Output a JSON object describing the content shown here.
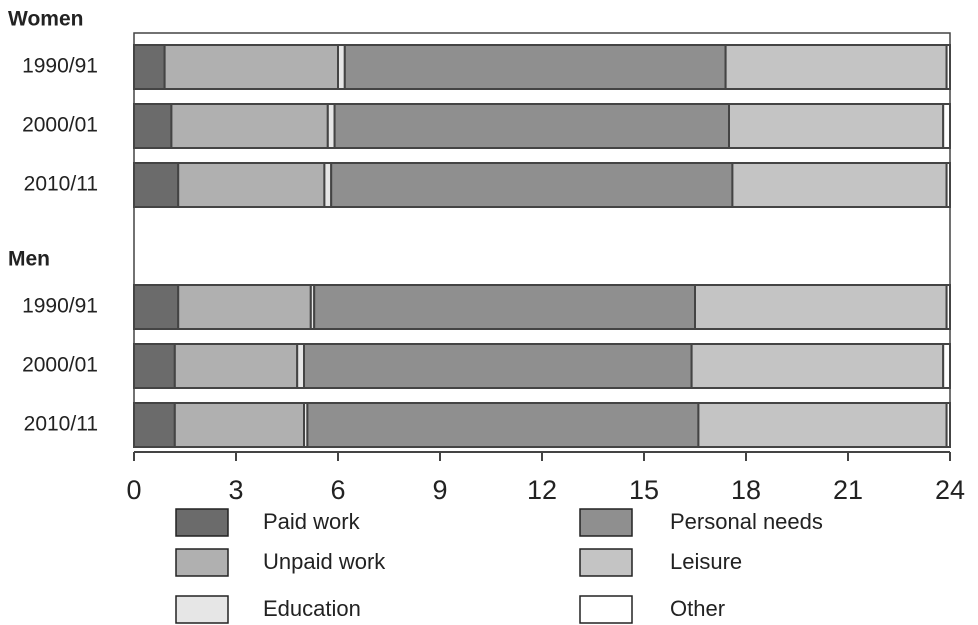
{
  "chart_data": {
    "type": "stacked-bar",
    "orientation": "horizontal",
    "groups": [
      {
        "name": "Women",
        "categories": [
          "1990/91",
          "2000/01",
          "2010/11"
        ]
      },
      {
        "name": "Men",
        "categories": [
          "1990/91",
          "2000/01",
          "2010/11"
        ]
      }
    ],
    "series": [
      {
        "name": "Paid work",
        "color": "#6b6b6b",
        "values": [
          0.9,
          1.1,
          1.3,
          1.3,
          1.2,
          1.2
        ]
      },
      {
        "name": "Unpaid work",
        "color": "#b0b0b0",
        "values": [
          5.1,
          4.6,
          4.3,
          3.9,
          3.6,
          3.8
        ]
      },
      {
        "name": "Education",
        "color": "#e6e6e6",
        "values": [
          0.2,
          0.2,
          0.2,
          0.1,
          0.2,
          0.1
        ]
      },
      {
        "name": "Personal needs",
        "color": "#8f8f8f",
        "values": [
          11.2,
          11.6,
          11.8,
          11.2,
          11.4,
          11.5
        ]
      },
      {
        "name": "Leisure",
        "color": "#c4c4c4",
        "values": [
          6.5,
          6.3,
          6.3,
          7.4,
          7.4,
          7.3
        ]
      },
      {
        "name": "Other",
        "color": "#ffffff",
        "values": [
          0.1,
          0.2,
          0.1,
          0.1,
          0.2,
          0.1
        ]
      }
    ],
    "xlim": [
      0,
      24
    ],
    "xticks": [
      0,
      3,
      6,
      9,
      12,
      15,
      18,
      21,
      24
    ],
    "legend": "bottom"
  }
}
